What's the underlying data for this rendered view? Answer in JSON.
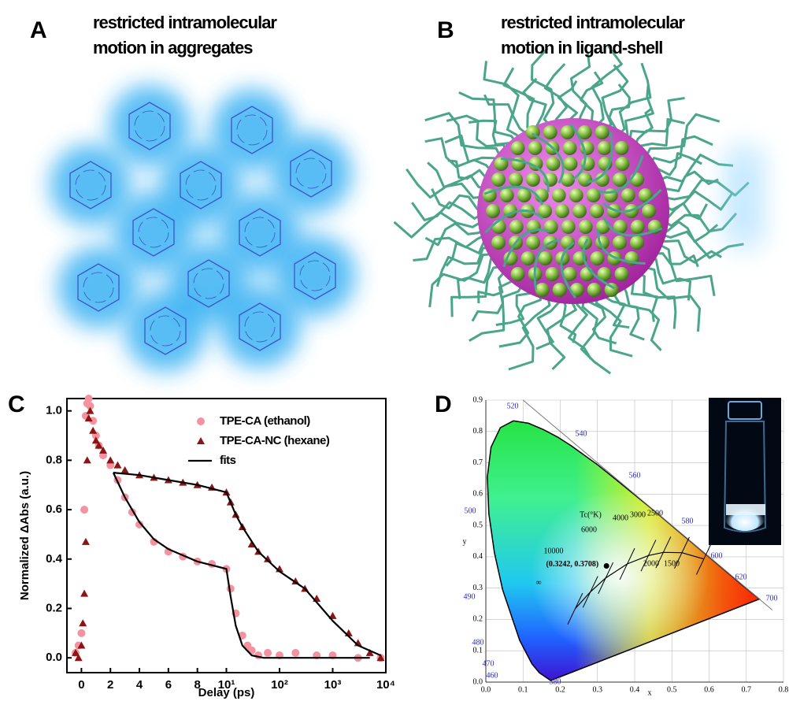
{
  "panels": [
    {
      "label": "A",
      "title": [
        "restricted intramolecular",
        "motion in aggregates"
      ]
    },
    {
      "label": "B",
      "title": [
        "restricted intramolecular",
        "motion in ligand-shell"
      ]
    },
    {
      "label": "C"
    },
    {
      "label": "D"
    }
  ],
  "chart_data": [
    {
      "type": "scatter",
      "x_label": "Delay (ps)",
      "y_label": "Normalized ΔAbs (a.u.)",
      "xscale": "linear-log",
      "xlinthresh": 10,
      "xlim": [
        -1,
        10000
      ],
      "ylim": [
        -0.06,
        1.05
      ],
      "xticks": [
        0,
        2,
        4,
        6,
        8,
        {
          "value": 10,
          "label": "10¹"
        },
        {
          "value": 100,
          "label": "10²"
        },
        {
          "value": 1000,
          "label": "10³"
        },
        {
          "value": 10000,
          "label": "10⁴"
        }
      ],
      "yticks": [
        {
          "value": 0,
          "label": "0.0"
        },
        0.2,
        0.4,
        0.6,
        0.8,
        {
          "value": 1,
          "label": "1.0"
        }
      ],
      "legend": "upper right",
      "series": [
        {
          "name": "TPE-CA (ethanol)",
          "color": "#f4939f",
          "marker": "circle",
          "x": [
            -0.4,
            -0.2,
            0,
            0.2,
            0.3,
            0.4,
            0.5,
            0.6,
            0.8,
            1,
            1.2,
            1.5,
            2,
            2.5,
            3,
            3.5,
            4,
            5,
            6,
            7,
            8,
            9,
            10,
            12,
            15,
            20,
            25,
            30,
            40,
            60,
            100,
            200,
            500,
            1000,
            3000,
            8000
          ],
          "values": [
            0.02,
            0.05,
            0.1,
            0.6,
            0.98,
            1.03,
            1.05,
            1.02,
            0.96,
            0.9,
            0.86,
            0.82,
            0.78,
            0.72,
            0.65,
            0.59,
            0.54,
            0.47,
            0.43,
            0.41,
            0.39,
            0.38,
            0.36,
            0.28,
            0.18,
            0.09,
            0.05,
            0.03,
            0.01,
            0.02,
            0.01,
            0.02,
            0.01,
            0.01,
            0.0,
            0.0
          ]
        },
        {
          "name": "TPE-CA-NC (hexane)",
          "color": "#8b1414",
          "marker": "triangle",
          "x": [
            -0.4,
            -0.2,
            0,
            0.1,
            0.2,
            0.3,
            0.4,
            0.5,
            0.6,
            0.8,
            1,
            1.2,
            1.5,
            2,
            2.5,
            3,
            4,
            5,
            6,
            7,
            8,
            9,
            10,
            12,
            15,
            20,
            30,
            40,
            60,
            100,
            200,
            300,
            500,
            1000,
            2000,
            3000,
            5000,
            8000
          ],
          "values": [
            0.02,
            0.0,
            0.05,
            0.14,
            0.26,
            0.47,
            0.8,
            0.97,
            1.0,
            0.92,
            0.88,
            0.86,
            0.84,
            0.8,
            0.78,
            0.76,
            0.74,
            0.73,
            0.72,
            0.71,
            0.7,
            0.69,
            0.67,
            0.63,
            0.58,
            0.53,
            0.46,
            0.43,
            0.4,
            0.36,
            0.31,
            0.28,
            0.24,
            0.17,
            0.1,
            0.06,
            0.02,
            0.0
          ]
        },
        {
          "name": "fits",
          "color": "#000000",
          "marker": "line",
          "x": [
            2.2,
            3,
            4,
            5,
            6,
            8,
            10,
            12,
            15,
            20,
            30,
            50,
            100,
            1000,
            5000,
            null,
            2.2,
            4,
            6,
            8,
            10,
            15,
            20,
            40,
            100,
            300,
            1000,
            3000,
            8000
          ],
          "values": [
            0.75,
            0.65,
            0.55,
            0.48,
            0.44,
            0.39,
            0.36,
            0.25,
            0.13,
            0.05,
            0.01,
            0.0,
            0.0,
            0.0,
            0.0,
            null,
            0.75,
            0.74,
            0.72,
            0.7,
            0.67,
            0.58,
            0.53,
            0.43,
            0.35,
            0.28,
            0.15,
            0.05,
            0.01
          ]
        }
      ]
    },
    {
      "type": "chromaticity",
      "x_label": "x",
      "y_label": "y",
      "xlim": [
        0,
        0.8
      ],
      "ylim": [
        0,
        0.9
      ],
      "grid": true,
      "xticks": [
        {
          "value": 0,
          "label": "0.0"
        },
        0.1,
        0.2,
        0.3,
        0.4,
        0.5,
        0.6,
        0.7,
        0.8
      ],
      "yticks": [
        {
          "value": 0,
          "label": "0.0"
        },
        0.1,
        0.2,
        0.3,
        0.4,
        0.5,
        0.6,
        0.7,
        0.8,
        0.9
      ],
      "point": {
        "x": 0.3242,
        "y": 0.3708,
        "label": "(0.3242, 0.3708)"
      },
      "wavelength_labels": [
        "520",
        "540",
        "560",
        "580",
        "600",
        "620",
        "700",
        "500",
        "490",
        "480",
        "470",
        "460",
        "380"
      ],
      "temperature_title": "Tc(°K)",
      "temperature_labels": [
        "10000",
        "6000",
        "4000",
        "3000",
        "2500",
        "2000",
        "1500",
        "∞"
      ]
    }
  ]
}
